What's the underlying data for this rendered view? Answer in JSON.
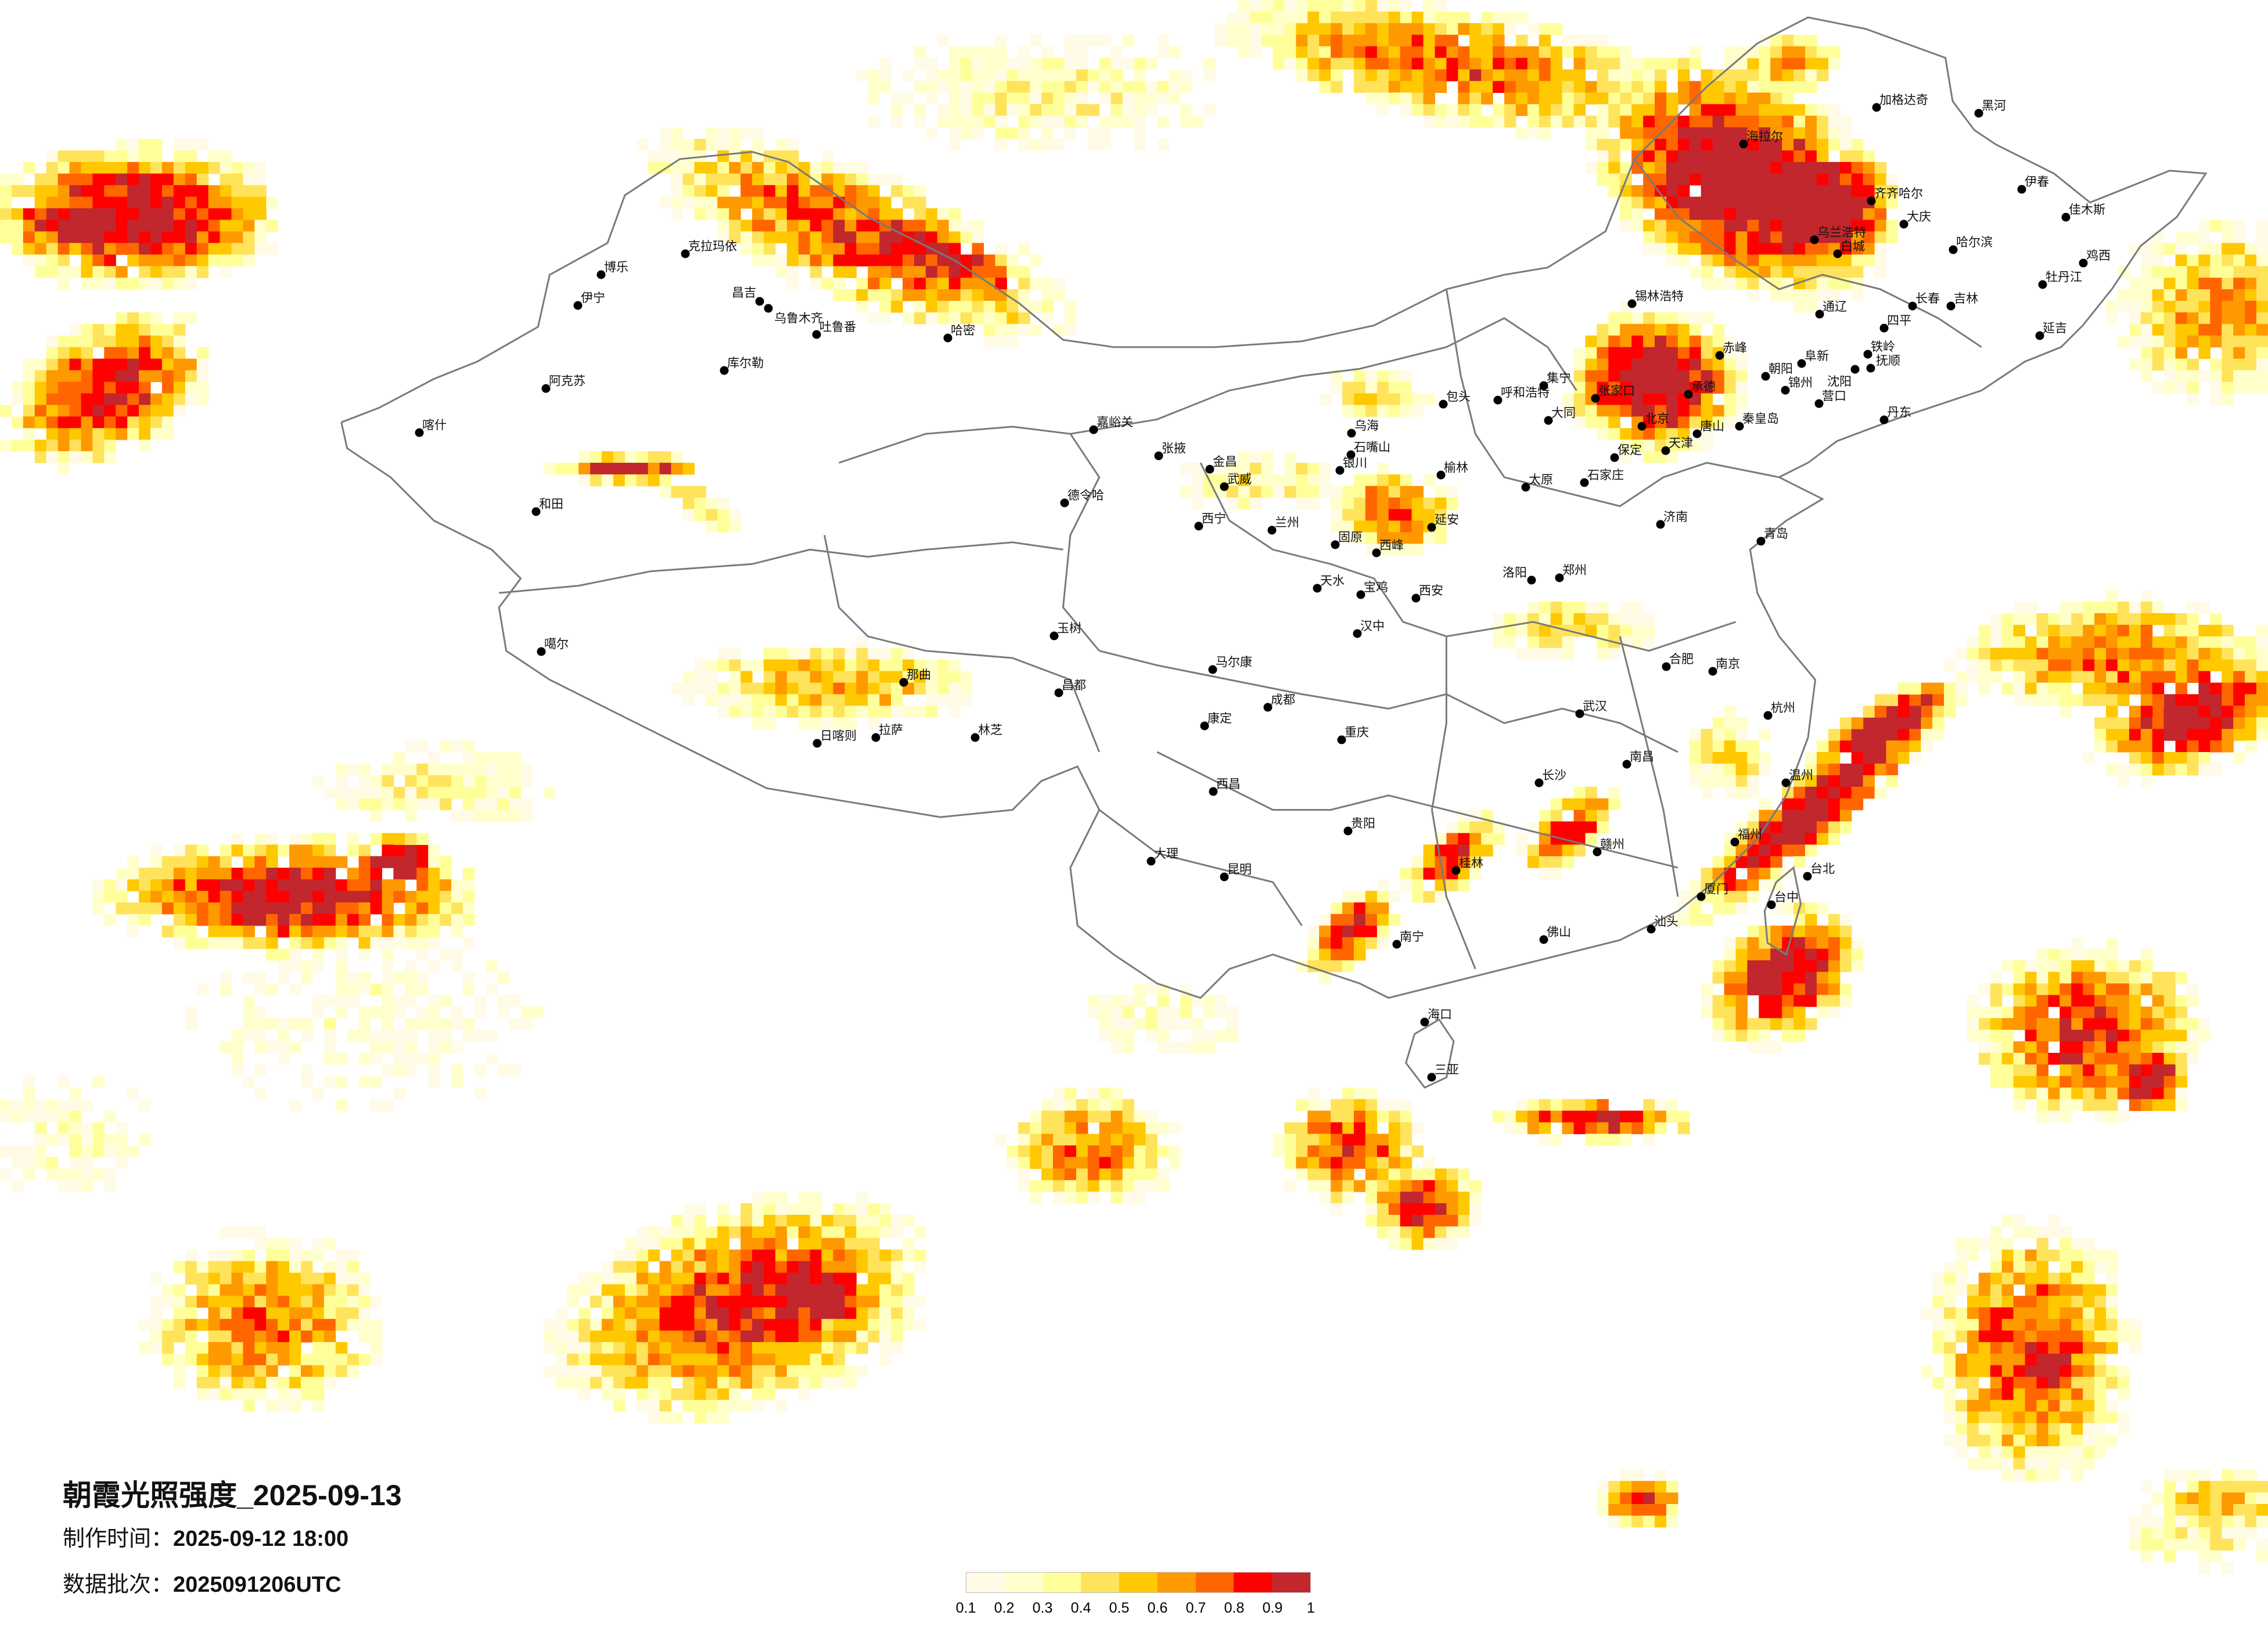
{
  "title": "朝霞光照强度_2025-09-13",
  "made_time": {
    "label": "制作时间：",
    "value": "2025-09-12 18:00"
  },
  "batch": {
    "label": "数据批次：",
    "value": "2025091206UTC"
  },
  "legend": {
    "colors": [
      "#fffbe6",
      "#ffffcc",
      "#ffff99",
      "#ffe35a",
      "#ffc800",
      "#ff9900",
      "#ff6600",
      "#ff0000",
      "#c1272d"
    ],
    "labels": [
      "0.1",
      "0.2",
      "0.3",
      "0.4",
      "0.5",
      "0.6",
      "0.7",
      "0.8",
      "0.9",
      "1"
    ]
  },
  "map": {
    "border_color": "#7a7a7a",
    "city_marker_color": "#000000"
  },
  "cities": [
    "克拉玛依",
    "博乐",
    "伊宁",
    "昌吉",
    "乌鲁木齐",
    "吐鲁番",
    "哈密",
    "库尔勒",
    "阿克苏",
    "喀什",
    "和田",
    "噶尔",
    "那曲",
    "拉萨",
    "林芝",
    "日喀则",
    "玉树",
    "昌都",
    "德令哈",
    "嘉峪关",
    "张掖",
    "金昌",
    "武威",
    "西宁",
    "兰州",
    "银川",
    "石嘴山",
    "乌海",
    "包头",
    "呼和浩特",
    "集宁",
    "张家口",
    "大同",
    "榆林",
    "延安",
    "西峰",
    "固原",
    "天水",
    "宝鸡",
    "西安",
    "汉中",
    "太原",
    "石家庄",
    "北京",
    "天津",
    "保定",
    "唐山",
    "秦皇岛",
    "承德",
    "赤峰",
    "锡林浩特",
    "通辽",
    "朝阳",
    "阜新",
    "锦州",
    "沈阳",
    "抚顺",
    "铁岭",
    "丹东",
    "营口",
    "长春",
    "吉林",
    "四平",
    "延吉",
    "哈尔滨",
    "齐齐哈尔",
    "大庆",
    "海拉尔",
    "加格达奇",
    "黑河",
    "伊春",
    "佳木斯",
    "牡丹江",
    "鸡西",
    "白城",
    "乌兰浩特",
    "济南",
    "青岛",
    "郑州",
    "洛阳",
    "合肥",
    "南京",
    "杭州",
    "武汉",
    "成都",
    "重庆",
    "长沙",
    "南昌",
    "贵阳",
    "昆明",
    "南宁",
    "桂林",
    "赣州",
    "福州",
    "厦门",
    "温州",
    "台中",
    "台北",
    "海口",
    "三亚",
    "马尔康",
    "康定",
    "西昌",
    "大理",
    "佛山",
    "汕头"
  ]
}
